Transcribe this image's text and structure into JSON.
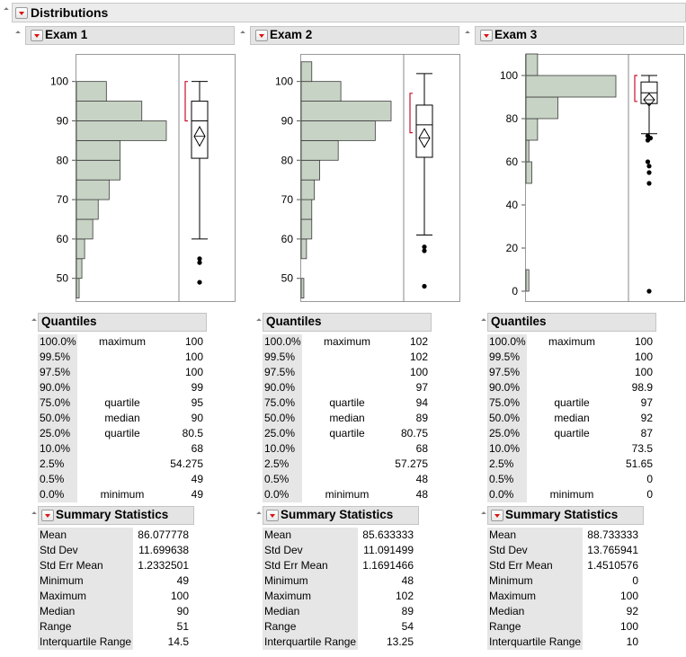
{
  "report": {
    "title": "Distributions"
  },
  "panels": [
    {
      "title": "Exam 1",
      "axis": {
        "min": 44,
        "max": 107,
        "ticks": [
          50,
          60,
          70,
          80,
          90,
          100
        ]
      },
      "histogram": {
        "bin_start": 45,
        "bin_width": 5,
        "counts": [
          1,
          2,
          3,
          6,
          8,
          12,
          16,
          16,
          33,
          24,
          11
        ]
      },
      "boxplot": {
        "min_whisker": 60,
        "q1": 80.5,
        "median": 90,
        "q3": 95,
        "max_whisker": 100,
        "mean": 86.077778,
        "ci": [
          83.6,
          88.5
        ],
        "shortest_half": [
          90,
          100
        ],
        "outliers": [
          49,
          54,
          55
        ]
      },
      "quantiles_title": "Quantiles",
      "quantiles": [
        {
          "pct": "100.0%",
          "label": "maximum",
          "value": "100"
        },
        {
          "pct": "99.5%",
          "label": "",
          "value": "100"
        },
        {
          "pct": "97.5%",
          "label": "",
          "value": "100"
        },
        {
          "pct": "90.0%",
          "label": "",
          "value": "99"
        },
        {
          "pct": "75.0%",
          "label": "quartile",
          "value": "95"
        },
        {
          "pct": "50.0%",
          "label": "median",
          "value": "90"
        },
        {
          "pct": "25.0%",
          "label": "quartile",
          "value": "80.5"
        },
        {
          "pct": "10.0%",
          "label": "",
          "value": "68"
        },
        {
          "pct": "2.5%",
          "label": "",
          "value": "54.275"
        },
        {
          "pct": "0.5%",
          "label": "",
          "value": "49"
        },
        {
          "pct": "0.0%",
          "label": "minimum",
          "value": "49"
        }
      ],
      "summary_title": "Summary Statistics",
      "summary": [
        {
          "label": "Mean",
          "value": "86.077778"
        },
        {
          "label": "Std Dev",
          "value": "11.699638"
        },
        {
          "label": "Std Err Mean",
          "value": "1.2332501"
        },
        {
          "label": "Minimum",
          "value": "49"
        },
        {
          "label": "Maximum",
          "value": "100"
        },
        {
          "label": "Median",
          "value": "90"
        },
        {
          "label": "Range",
          "value": "51"
        },
        {
          "label": "Interquartile Range",
          "value": "14.5"
        }
      ]
    },
    {
      "title": "Exam 2",
      "axis": {
        "min": 44,
        "max": 107,
        "ticks": [
          50,
          60,
          70,
          80,
          90,
          100
        ]
      },
      "histogram": {
        "bin_start": 45,
        "bin_width": 5,
        "counts": [
          1,
          0,
          2,
          4,
          4,
          5,
          7,
          14,
          28,
          34,
          15,
          4
        ]
      },
      "boxplot": {
        "min_whisker": 61,
        "q1": 80.75,
        "median": 89,
        "q3": 94,
        "max_whisker": 102,
        "mean": 85.633333,
        "ci": [
          83.3,
          88.0
        ],
        "shortest_half": [
          87,
          97
        ],
        "outliers": [
          48,
          57,
          58
        ]
      },
      "quantiles_title": "Quantiles",
      "quantiles": [
        {
          "pct": "100.0%",
          "label": "maximum",
          "value": "102"
        },
        {
          "pct": "99.5%",
          "label": "",
          "value": "102"
        },
        {
          "pct": "97.5%",
          "label": "",
          "value": "100"
        },
        {
          "pct": "90.0%",
          "label": "",
          "value": "97"
        },
        {
          "pct": "75.0%",
          "label": "quartile",
          "value": "94"
        },
        {
          "pct": "50.0%",
          "label": "median",
          "value": "89"
        },
        {
          "pct": "25.0%",
          "label": "quartile",
          "value": "80.75"
        },
        {
          "pct": "10.0%",
          "label": "",
          "value": "68"
        },
        {
          "pct": "2.5%",
          "label": "",
          "value": "57.275"
        },
        {
          "pct": "0.5%",
          "label": "",
          "value": "48"
        },
        {
          "pct": "0.0%",
          "label": "minimum",
          "value": "48"
        }
      ],
      "summary_title": "Summary Statistics",
      "summary": [
        {
          "label": "Mean",
          "value": "85.633333"
        },
        {
          "label": "Std Dev",
          "value": "11.091499"
        },
        {
          "label": "Std Err Mean",
          "value": "1.1691466"
        },
        {
          "label": "Minimum",
          "value": "48"
        },
        {
          "label": "Maximum",
          "value": "102"
        },
        {
          "label": "Median",
          "value": "89"
        },
        {
          "label": "Range",
          "value": "54"
        },
        {
          "label": "Interquartile Range",
          "value": "13.25"
        }
      ]
    },
    {
      "title": "Exam 3",
      "axis": {
        "min": -5,
        "max": 110,
        "ticks": [
          0,
          20,
          40,
          60,
          80,
          100
        ]
      },
      "histogram": {
        "bin_start": 0,
        "bin_width": 10,
        "counts": [
          1,
          0,
          0,
          0,
          0,
          2,
          1,
          4,
          11,
          31,
          4
        ]
      },
      "boxplot": {
        "min_whisker": 73,
        "q1": 87,
        "median": 92,
        "q3": 97,
        "max_whisker": 100,
        "mean": 88.733333,
        "ci": [
          85.9,
          91.6
        ],
        "shortest_half": [
          88,
          100
        ],
        "outliers": [
          0,
          50,
          55,
          58,
          60,
          70,
          71,
          72
        ]
      },
      "quantiles_title": "Quantiles",
      "quantiles": [
        {
          "pct": "100.0%",
          "label": "maximum",
          "value": "100"
        },
        {
          "pct": "99.5%",
          "label": "",
          "value": "100"
        },
        {
          "pct": "97.5%",
          "label": "",
          "value": "100"
        },
        {
          "pct": "90.0%",
          "label": "",
          "value": "98.9"
        },
        {
          "pct": "75.0%",
          "label": "quartile",
          "value": "97"
        },
        {
          "pct": "50.0%",
          "label": "median",
          "value": "92"
        },
        {
          "pct": "25.0%",
          "label": "quartile",
          "value": "87"
        },
        {
          "pct": "10.0%",
          "label": "",
          "value": "73.5"
        },
        {
          "pct": "2.5%",
          "label": "",
          "value": "51.65"
        },
        {
          "pct": "0.5%",
          "label": "",
          "value": "0"
        },
        {
          "pct": "0.0%",
          "label": "minimum",
          "value": "0"
        }
      ],
      "summary_title": "Summary Statistics",
      "summary": [
        {
          "label": "Mean",
          "value": "88.733333"
        },
        {
          "label": "Std Dev",
          "value": "13.765941"
        },
        {
          "label": "Std Err Mean",
          "value": "1.4510576"
        },
        {
          "label": "Minimum",
          "value": "0"
        },
        {
          "label": "Maximum",
          "value": "100"
        },
        {
          "label": "Median",
          "value": "92"
        },
        {
          "label": "Range",
          "value": "100"
        },
        {
          "label": "Interquartile Range",
          "value": "10"
        }
      ]
    }
  ],
  "colors": {
    "histogram_fill": "#c7d3c4",
    "histogram_stroke": "#3a3a3a",
    "bracket": "#c8102e"
  }
}
